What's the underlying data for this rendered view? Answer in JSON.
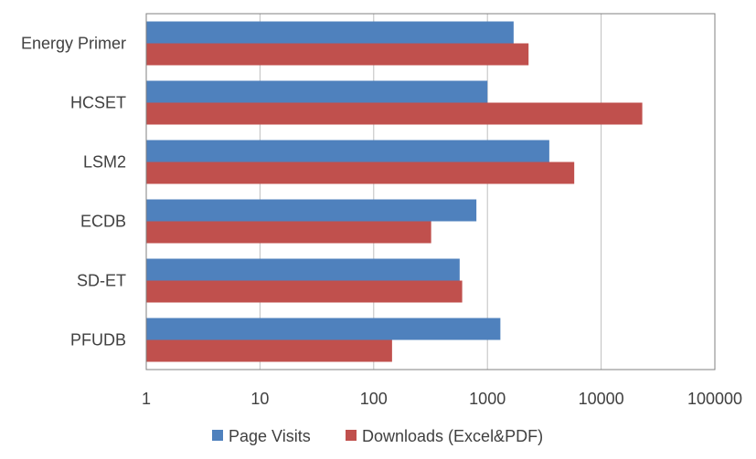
{
  "chart_data": {
    "type": "bar",
    "orientation": "horizontal",
    "x_scale": "log",
    "xlim": [
      1,
      100000
    ],
    "x_ticks": [
      "1",
      "10",
      "100",
      "1000",
      "10000",
      "100000"
    ],
    "grid": true,
    "legend_position": "bottom",
    "categories": [
      "Energy Primer",
      "HCSET",
      "LSM2",
      "ECDB",
      "SD-ET",
      "PFUDB"
    ],
    "series": [
      {
        "name": "Page Visits",
        "color": "#4f81bd",
        "values": [
          1700,
          1000,
          3500,
          800,
          570,
          1300
        ]
      },
      {
        "name": "Downloads (Excel&PDF)",
        "color": "#c0504d",
        "values": [
          2300,
          23000,
          5800,
          320,
          600,
          145
        ]
      }
    ]
  }
}
